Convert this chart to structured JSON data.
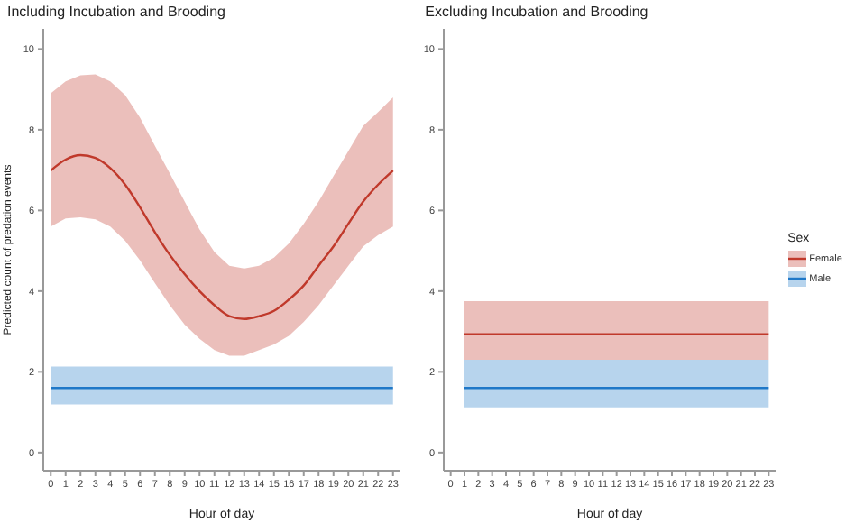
{
  "chart_data": [
    {
      "type": "line",
      "title": "Including Incubation and Brooding",
      "xlabel": "Hour of day",
      "ylabel": "Predicted count of predation events",
      "legend_title": "Sex",
      "xlim": [
        -0.5,
        23.5
      ],
      "xticks": [
        0,
        1,
        2,
        3,
        4,
        5,
        6,
        7,
        8,
        9,
        10,
        11,
        12,
        13,
        14,
        15,
        16,
        17,
        18,
        19,
        20,
        21,
        22,
        23
      ],
      "ylim": [
        -0.45,
        10.5
      ],
      "yticks": [
        0,
        2,
        4,
        6,
        8,
        10
      ],
      "grid": false,
      "legend": "right",
      "series": [
        {
          "name": "Female",
          "color": "#c0392b",
          "x": [
            0,
            1,
            2,
            3,
            4,
            5,
            6,
            7,
            8,
            9,
            10,
            11,
            12,
            13,
            14,
            15,
            16,
            17,
            18,
            19,
            20,
            21,
            22,
            23
          ],
          "values": [
            6.99,
            7.26,
            7.37,
            7.3,
            7.05,
            6.64,
            6.08,
            5.46,
            4.9,
            4.42,
            4.0,
            3.65,
            3.38,
            3.31,
            3.38,
            3.51,
            3.79,
            4.14,
            4.63,
            5.11,
            5.67,
            6.22,
            6.64,
            6.99
          ],
          "upper": [
            8.9,
            9.2,
            9.35,
            9.37,
            9.2,
            8.86,
            8.3,
            7.6,
            6.92,
            6.22,
            5.53,
            4.97,
            4.63,
            4.56,
            4.63,
            4.83,
            5.18,
            5.67,
            6.22,
            6.85,
            7.47,
            8.1,
            8.44,
            8.8
          ],
          "lower": [
            5.6,
            5.8,
            5.83,
            5.78,
            5.6,
            5.25,
            4.76,
            4.2,
            3.65,
            3.17,
            2.82,
            2.54,
            2.4,
            2.4,
            2.54,
            2.68,
            2.89,
            3.24,
            3.65,
            4.14,
            4.63,
            5.11,
            5.39,
            5.6
          ]
        },
        {
          "name": "Male",
          "color": "#1f78c8",
          "x": [
            0,
            23
          ],
          "values": [
            1.6,
            1.6
          ],
          "upper": [
            2.13,
            2.13
          ],
          "lower": [
            1.19,
            1.19
          ]
        }
      ]
    },
    {
      "type": "line",
      "title": "Excluding Incubation and Brooding",
      "xlabel": "Hour of day",
      "xlim": [
        -0.5,
        23.5
      ],
      "xticks": [
        0,
        1,
        2,
        3,
        4,
        5,
        6,
        7,
        8,
        9,
        10,
        11,
        12,
        13,
        14,
        15,
        16,
        17,
        18,
        19,
        20,
        21,
        22,
        23
      ],
      "ylim": [
        -0.45,
        10.5
      ],
      "yticks": [
        0,
        2,
        4,
        6,
        8,
        10
      ],
      "grid": false,
      "series": [
        {
          "color": "#c0392b",
          "x": [
            1,
            23
          ],
          "values": [
            2.93,
            2.93
          ],
          "upper": [
            3.75,
            3.75
          ],
          "lower": [
            2.3,
            2.3
          ]
        },
        {
          "color": "#1f78c8",
          "x": [
            1,
            23
          ],
          "values": [
            1.6,
            1.6
          ],
          "upper": [
            2.3,
            2.3
          ],
          "lower": [
            1.12,
            1.12
          ]
        }
      ]
    }
  ]
}
